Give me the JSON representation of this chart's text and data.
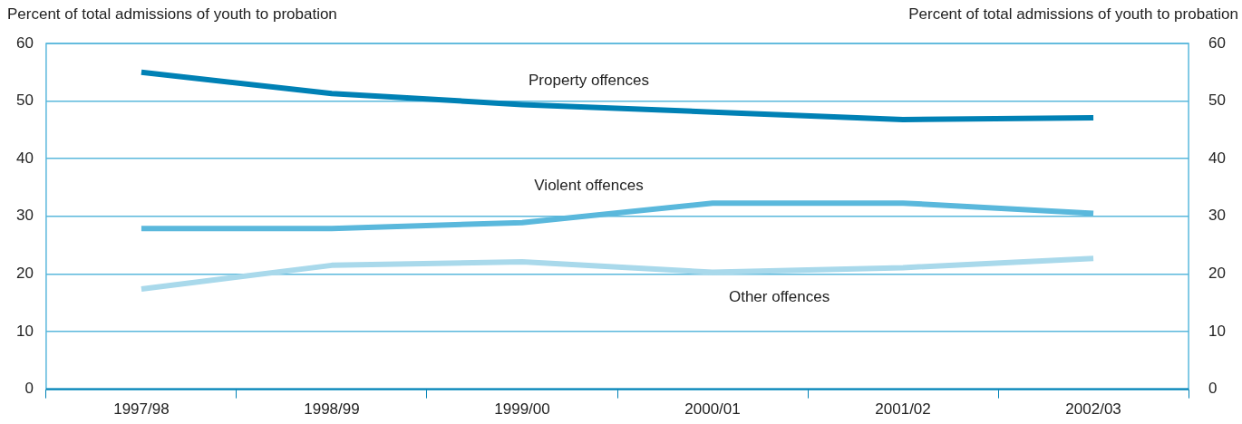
{
  "chart_data": {
    "type": "line",
    "ylabel": "Percent of total admissions of youth to probation",
    "y2label": "Percent of total admissions of youth to probation",
    "categories": [
      "1997/98",
      "1998/99",
      "1999/00",
      "2000/01",
      "2001/02",
      "2002/03"
    ],
    "series": [
      {
        "name": "Property offences",
        "color": "#0081b5",
        "values": [
          55.0,
          51.3,
          49.4,
          48.1,
          46.8,
          47.1
        ]
      },
      {
        "name": "Violent offences",
        "color": "#5ab8dc",
        "values": [
          27.9,
          27.9,
          28.9,
          32.3,
          32.3,
          30.5
        ]
      },
      {
        "name": "Other offences",
        "color": "#a9d9eb",
        "values": [
          17.4,
          21.5,
          22.1,
          20.3,
          21.1,
          22.7
        ]
      }
    ],
    "ylim": [
      0,
      60
    ],
    "yticks": [
      0,
      10,
      20,
      30,
      40,
      50,
      60
    ],
    "y2lim": [
      0,
      60
    ],
    "y2ticks": [
      0,
      10,
      20,
      30,
      40,
      50,
      60
    ],
    "grid": "y",
    "legend": false,
    "marker": "none",
    "line_style": "solid"
  }
}
